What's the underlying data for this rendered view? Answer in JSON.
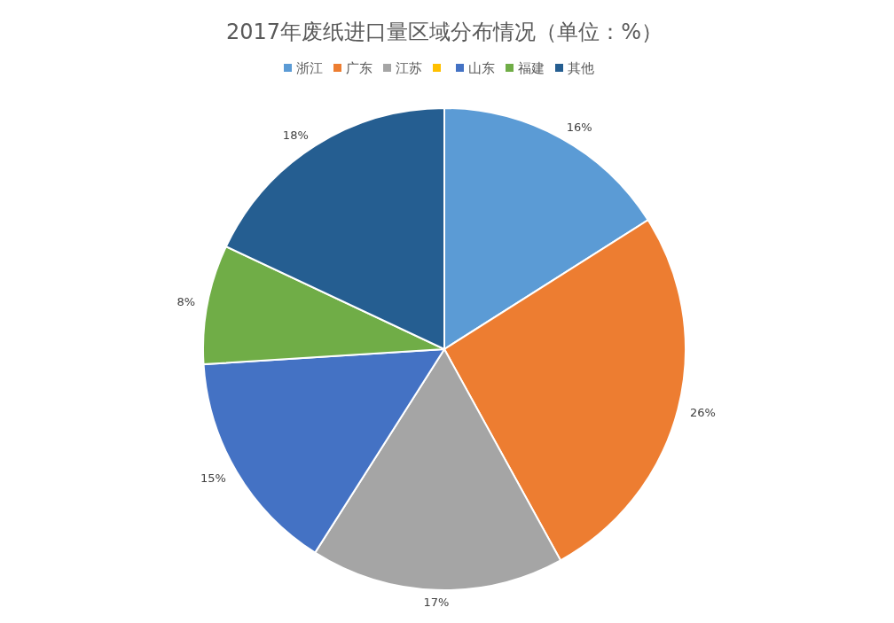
{
  "chart_data": {
    "type": "pie",
    "title": "2017年废纸进口量区域分布情况（单位：%）",
    "categories": [
      "浙江",
      "广东",
      "江苏",
      null,
      "山东",
      "福建",
      "其他"
    ],
    "values": [
      16,
      26,
      17,
      0,
      15,
      8,
      18
    ],
    "colors": [
      "#5b9bd5",
      "#ed7d31",
      "#a5a5a5",
      "#ffc000",
      "#4472c4",
      "#70ad47",
      "#255e91"
    ],
    "value_labels": [
      "16%",
      "26%",
      "17%",
      null,
      "15%",
      "8%",
      "18%"
    ],
    "legend": "top"
  }
}
